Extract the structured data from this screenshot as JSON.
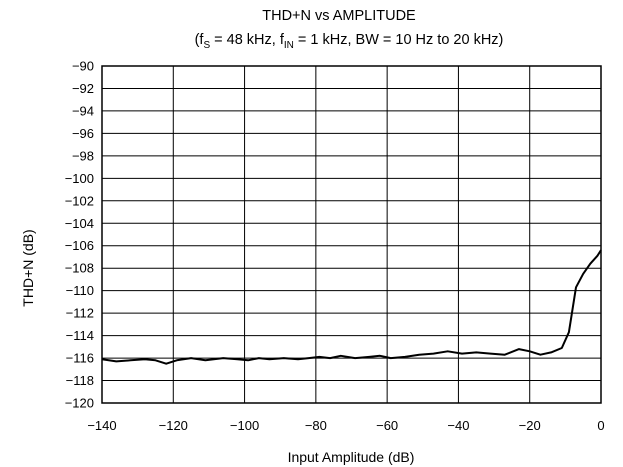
{
  "chart_data": {
    "type": "line",
    "title": "THD+N vs AMPLITUDE",
    "subtitle": {
      "p1": "(f",
      "p1_sub": "S",
      "p2": " = 48 kHz, f",
      "p2_sub": "IN",
      "p3": " = 1 kHz, BW = 10 Hz to 20 kHz)"
    },
    "xlabel": "Input Amplitude (dB)",
    "ylabel": "THD+N (dB)",
    "xlim": [
      -140,
      0
    ],
    "ylim": [
      -120,
      -90
    ],
    "x_ticks": [
      -140,
      -120,
      -100,
      -80,
      -60,
      -40,
      -20,
      0
    ],
    "x_tick_labels": [
      "−140",
      "−120",
      "−100",
      "−80",
      "−60",
      "−40",
      "−20",
      "0"
    ],
    "y_ticks": [
      -90,
      -92,
      -94,
      -96,
      -98,
      -100,
      -102,
      -104,
      -106,
      -108,
      -110,
      -112,
      -114,
      -116,
      -118,
      -120
    ],
    "y_tick_labels": [
      "−90",
      "−92",
      "−94",
      "−96",
      "−98",
      "−100",
      "−102",
      "−104",
      "−106",
      "−108",
      "−110",
      "−112",
      "−114",
      "−116",
      "−118",
      "−120"
    ],
    "grid": true,
    "series": [
      {
        "color": "#000000",
        "points": [
          [
            -140,
            -116.1
          ],
          [
            -136,
            -116.3
          ],
          [
            -132,
            -116.2
          ],
          [
            -128,
            -116.1
          ],
          [
            -125,
            -116.2
          ],
          [
            -122,
            -116.5
          ],
          [
            -119,
            -116.2
          ],
          [
            -115,
            -116.0
          ],
          [
            -111,
            -116.2
          ],
          [
            -106,
            -116.0
          ],
          [
            -102,
            -116.1
          ],
          [
            -99,
            -116.2
          ],
          [
            -96,
            -116.0
          ],
          [
            -93,
            -116.1
          ],
          [
            -89,
            -116.0
          ],
          [
            -85,
            -116.1
          ],
          [
            -82,
            -116.0
          ],
          [
            -79,
            -115.9
          ],
          [
            -76,
            -116.0
          ],
          [
            -73,
            -115.8
          ],
          [
            -69,
            -116.0
          ],
          [
            -65,
            -115.9
          ],
          [
            -62,
            -115.8
          ],
          [
            -59,
            -116.0
          ],
          [
            -55,
            -115.9
          ],
          [
            -51,
            -115.7
          ],
          [
            -47,
            -115.6
          ],
          [
            -43,
            -115.4
          ],
          [
            -39,
            -115.6
          ],
          [
            -35,
            -115.5
          ],
          [
            -31,
            -115.6
          ],
          [
            -27,
            -115.7
          ],
          [
            -23,
            -115.2
          ],
          [
            -20,
            -115.4
          ],
          [
            -17,
            -115.7
          ],
          [
            -14,
            -115.5
          ],
          [
            -11,
            -115.1
          ],
          [
            -9,
            -113.7
          ],
          [
            -7,
            -109.7
          ],
          [
            -5,
            -108.5
          ],
          [
            -3,
            -107.6
          ],
          [
            -1,
            -106.9
          ],
          [
            0,
            -106.4
          ]
        ]
      }
    ]
  }
}
